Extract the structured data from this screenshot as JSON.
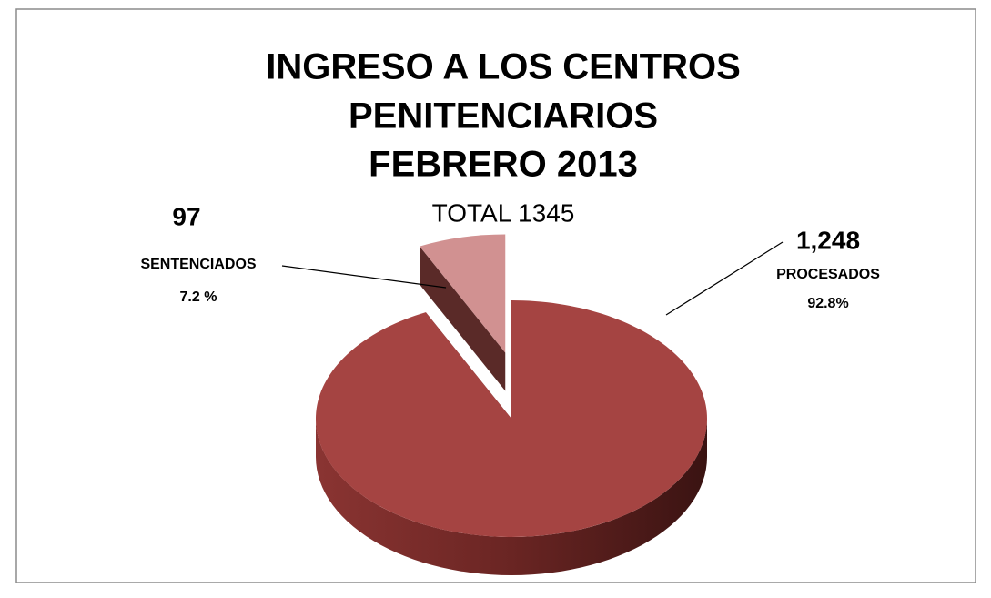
{
  "chart_data": {
    "type": "pie",
    "title": [
      "INGRESO A LOS CENTROS",
      "PENITENCIARIOS",
      "FEBRERO 2013"
    ],
    "subtitle": "TOTAL  1345",
    "categories": [
      "SENTENCIADOS",
      "PROCESADOS"
    ],
    "values": [
      97,
      1248
    ],
    "value_labels": [
      "97",
      "1,248"
    ],
    "percent_labels": [
      "7.2 %",
      "92.8%"
    ],
    "colors": [
      "#d19191",
      "#a54442"
    ],
    "exploded": [
      true,
      false
    ]
  }
}
